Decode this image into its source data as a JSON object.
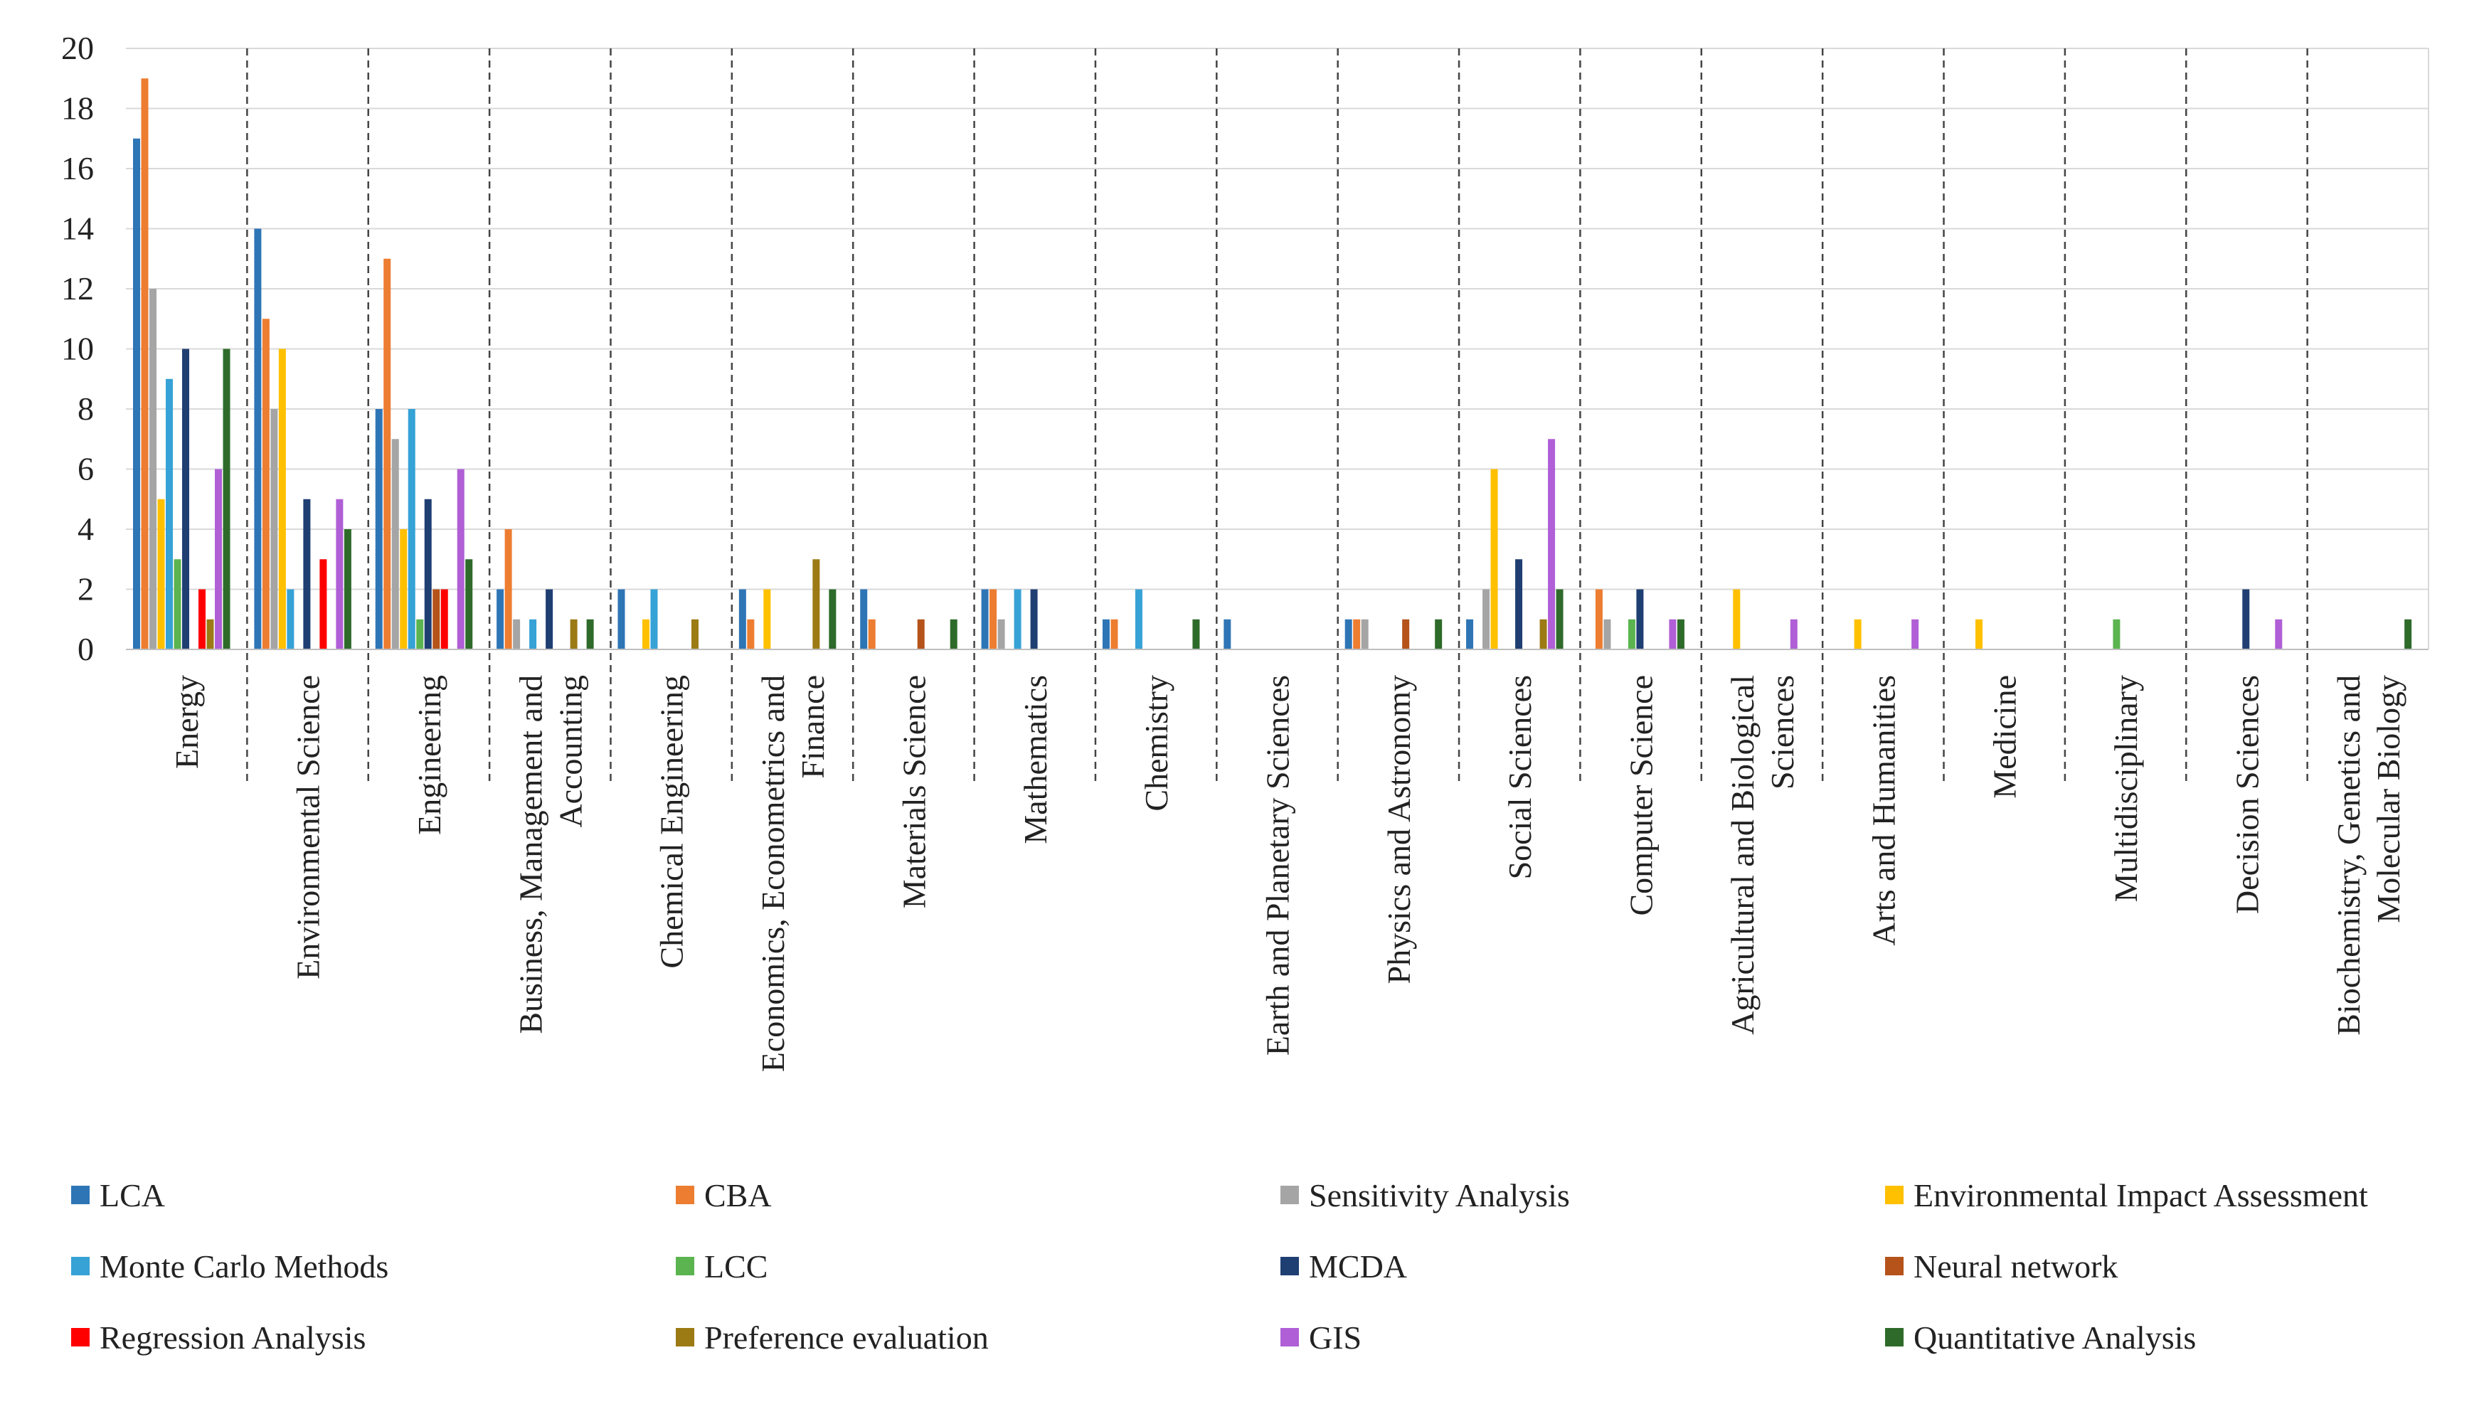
{
  "chart_data": {
    "type": "bar",
    "title": "",
    "xlabel": "",
    "ylabel": "",
    "ylim": [
      0,
      20
    ],
    "yticks": [
      "0",
      "2",
      "4",
      "6",
      "8",
      "10",
      "12",
      "14",
      "16",
      "18",
      "20"
    ],
    "categories": [
      [
        "Energy"
      ],
      [
        "Environmental Science"
      ],
      [
        "Engineering"
      ],
      [
        "Business, Management and",
        "Accounting"
      ],
      [
        "Chemical Engineering"
      ],
      [
        "Economics, Econometrics and",
        "Finance"
      ],
      [
        "Materials Science"
      ],
      [
        "Mathematics"
      ],
      [
        "Chemistry"
      ],
      [
        "Earth and Planetary Sciences"
      ],
      [
        "Physics and Astronomy"
      ],
      [
        "Social Sciences"
      ],
      [
        "Computer Science"
      ],
      [
        "Agricultural and Biological",
        "Sciences"
      ],
      [
        "Arts and Humanities"
      ],
      [
        "Medicine"
      ],
      [
        "Multidisciplinary"
      ],
      [
        "Decision Sciences"
      ],
      [
        "Biochemistry, Genetics and",
        "Molecular Biology"
      ]
    ],
    "series": [
      {
        "name": "LCA",
        "color": "#2E75B6",
        "values": [
          17,
          14,
          8,
          2,
          2,
          2,
          2,
          2,
          1,
          1,
          1,
          1,
          0,
          0,
          0,
          0,
          0,
          0,
          0
        ]
      },
      {
        "name": "CBA",
        "color": "#ED7D31",
        "values": [
          19,
          11,
          13,
          4,
          0,
          1,
          1,
          2,
          1,
          0,
          1,
          0,
          2,
          0,
          0,
          0,
          0,
          0,
          0
        ]
      },
      {
        "name": "Sensitivity Analysis",
        "color": "#A5A5A5",
        "values": [
          12,
          8,
          7,
          1,
          0,
          0,
          0,
          1,
          0,
          0,
          1,
          2,
          1,
          0,
          0,
          0,
          0,
          0,
          0
        ]
      },
      {
        "name": "Environmental Impact Assessment",
        "color": "#FFC000",
        "values": [
          5,
          10,
          4,
          0,
          1,
          2,
          0,
          0,
          0,
          0,
          0,
          6,
          0,
          2,
          1,
          1,
          0,
          0,
          0
        ]
      },
      {
        "name": "Monte Carlo Methods",
        "color": "#36A2D6",
        "values": [
          9,
          2,
          8,
          1,
          2,
          0,
          0,
          2,
          2,
          0,
          0,
          0,
          0,
          0,
          0,
          0,
          0,
          0,
          0
        ]
      },
      {
        "name": "LCC",
        "color": "#5BB450",
        "values": [
          3,
          0,
          1,
          0,
          0,
          0,
          0,
          0,
          0,
          0,
          0,
          0,
          1,
          0,
          0,
          0,
          1,
          0,
          0
        ]
      },
      {
        "name": "MCDA",
        "color": "#1F3F73",
        "values": [
          10,
          5,
          5,
          2,
          0,
          0,
          0,
          2,
          0,
          0,
          0,
          3,
          2,
          0,
          0,
          0,
          0,
          2,
          0
        ]
      },
      {
        "name": "Neural network",
        "color": "#B5531A",
        "values": [
          0,
          0,
          2,
          0,
          0,
          0,
          1,
          0,
          0,
          0,
          1,
          0,
          0,
          0,
          0,
          0,
          0,
          0,
          0
        ]
      },
      {
        "name": "Regression Analysis",
        "color": "#FF0000",
        "values": [
          2,
          3,
          2,
          0,
          0,
          0,
          0,
          0,
          0,
          0,
          0,
          0,
          0,
          0,
          0,
          0,
          0,
          0,
          0
        ]
      },
      {
        "name": "Preference evaluation",
        "color": "#9C7A14",
        "values": [
          1,
          0,
          0,
          1,
          1,
          3,
          0,
          0,
          0,
          0,
          0,
          1,
          0,
          0,
          0,
          0,
          0,
          0,
          0
        ]
      },
      {
        "name": "GIS",
        "color": "#B05FD6",
        "values": [
          6,
          5,
          6,
          0,
          0,
          0,
          0,
          0,
          0,
          0,
          0,
          7,
          1,
          1,
          1,
          0,
          0,
          1,
          0
        ]
      },
      {
        "name": "Quantitative Analysis",
        "color": "#2E6B2A",
        "values": [
          10,
          4,
          3,
          1,
          0,
          2,
          1,
          0,
          1,
          0,
          1,
          2,
          1,
          0,
          0,
          0,
          0,
          0,
          1
        ]
      }
    ],
    "legend_position": "bottom",
    "grid": true
  }
}
